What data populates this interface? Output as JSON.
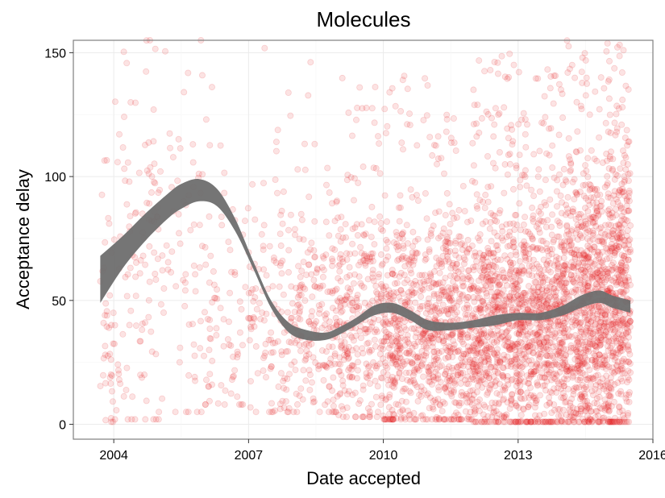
{
  "chart_data": {
    "type": "scatter",
    "title": "Molecules",
    "xlabel": "Date accepted",
    "ylabel": "Acceptance delay",
    "x_ticks": [
      "2004",
      "2007",
      "2010",
      "2013",
      "2016"
    ],
    "x_tick_values": [
      2004,
      2007,
      2010,
      2013,
      2016
    ],
    "y_ticks": [
      "0",
      "50",
      "100",
      "150"
    ],
    "y_tick_values": [
      0,
      50,
      100,
      150
    ],
    "xlim": [
      2003.1,
      2016.0
    ],
    "ylim": [
      -6,
      155
    ],
    "grid": true,
    "point_color": "#e41a1c",
    "point_alpha": 0.12,
    "smooth_color": "#6e6e6e",
    "scatter_density": [
      {
        "x_start": 2003.7,
        "x_end": 2004.0,
        "count": 40,
        "y_min": 1,
        "y_max": 120,
        "y_center": 30,
        "y_spread": 30
      },
      {
        "x_start": 2004.0,
        "x_end": 2005.0,
        "count": 110,
        "y_min": 2,
        "y_max": 155,
        "y_center": 70,
        "y_spread": 40
      },
      {
        "x_start": 2005.0,
        "x_end": 2006.0,
        "count": 70,
        "y_min": 5,
        "y_max": 155,
        "y_center": 70,
        "y_spread": 40
      },
      {
        "x_start": 2006.0,
        "x_end": 2007.0,
        "count": 80,
        "y_min": 8,
        "y_max": 145,
        "y_center": 40,
        "y_spread": 25
      },
      {
        "x_start": 2007.0,
        "x_end": 2008.0,
        "count": 130,
        "y_min": 5,
        "y_max": 155,
        "y_center": 40,
        "y_spread": 25
      },
      {
        "x_start": 2008.0,
        "x_end": 2009.0,
        "count": 200,
        "y_min": 5,
        "y_max": 150,
        "y_center": 40,
        "y_spread": 22
      },
      {
        "x_start": 2009.0,
        "x_end": 2010.0,
        "count": 300,
        "y_min": 3,
        "y_max": 140,
        "y_center": 42,
        "y_spread": 22
      },
      {
        "x_start": 2010.0,
        "x_end": 2011.0,
        "count": 420,
        "y_min": 2,
        "y_max": 145,
        "y_center": 38,
        "y_spread": 22
      },
      {
        "x_start": 2011.0,
        "x_end": 2012.0,
        "count": 480,
        "y_min": 2,
        "y_max": 125,
        "y_center": 38,
        "y_spread": 22
      },
      {
        "x_start": 2012.0,
        "x_end": 2013.0,
        "count": 620,
        "y_min": 1,
        "y_max": 150,
        "y_center": 40,
        "y_spread": 24
      },
      {
        "x_start": 2013.0,
        "x_end": 2014.0,
        "count": 650,
        "y_min": 1,
        "y_max": 145,
        "y_center": 42,
        "y_spread": 25
      },
      {
        "x_start": 2014.0,
        "x_end": 2015.0,
        "count": 800,
        "y_min": 1,
        "y_max": 155,
        "y_center": 48,
        "y_spread": 28
      },
      {
        "x_start": 2015.0,
        "x_end": 2015.5,
        "count": 450,
        "y_min": 1,
        "y_max": 155,
        "y_center": 50,
        "y_spread": 30
      }
    ],
    "smooth": {
      "x": [
        2003.7,
        2004.2,
        2004.7,
        2005.2,
        2005.5,
        2005.9,
        2006.3,
        2006.7,
        2007.1,
        2007.5,
        2007.9,
        2008.3,
        2008.7,
        2009.0,
        2009.4,
        2009.8,
        2010.2,
        2010.6,
        2011.0,
        2011.5,
        2012.0,
        2012.5,
        2013.0,
        2013.5,
        2014.0,
        2014.4,
        2014.8,
        2015.1,
        2015.5
      ],
      "lower": [
        49,
        63,
        74,
        83,
        87,
        90,
        88,
        78,
        63,
        47,
        37,
        34,
        34,
        36,
        40,
        44,
        45,
        42,
        38,
        38,
        39,
        40,
        42,
        42,
        44,
        47,
        49,
        47,
        45
      ],
      "upper": [
        68,
        76,
        85,
        93,
        97,
        99,
        95,
        83,
        66,
        50,
        41,
        38,
        37,
        39,
        43,
        48,
        49,
        46,
        42,
        41,
        42,
        44,
        45,
        45,
        48,
        52,
        54,
        52,
        50
      ]
    }
  }
}
